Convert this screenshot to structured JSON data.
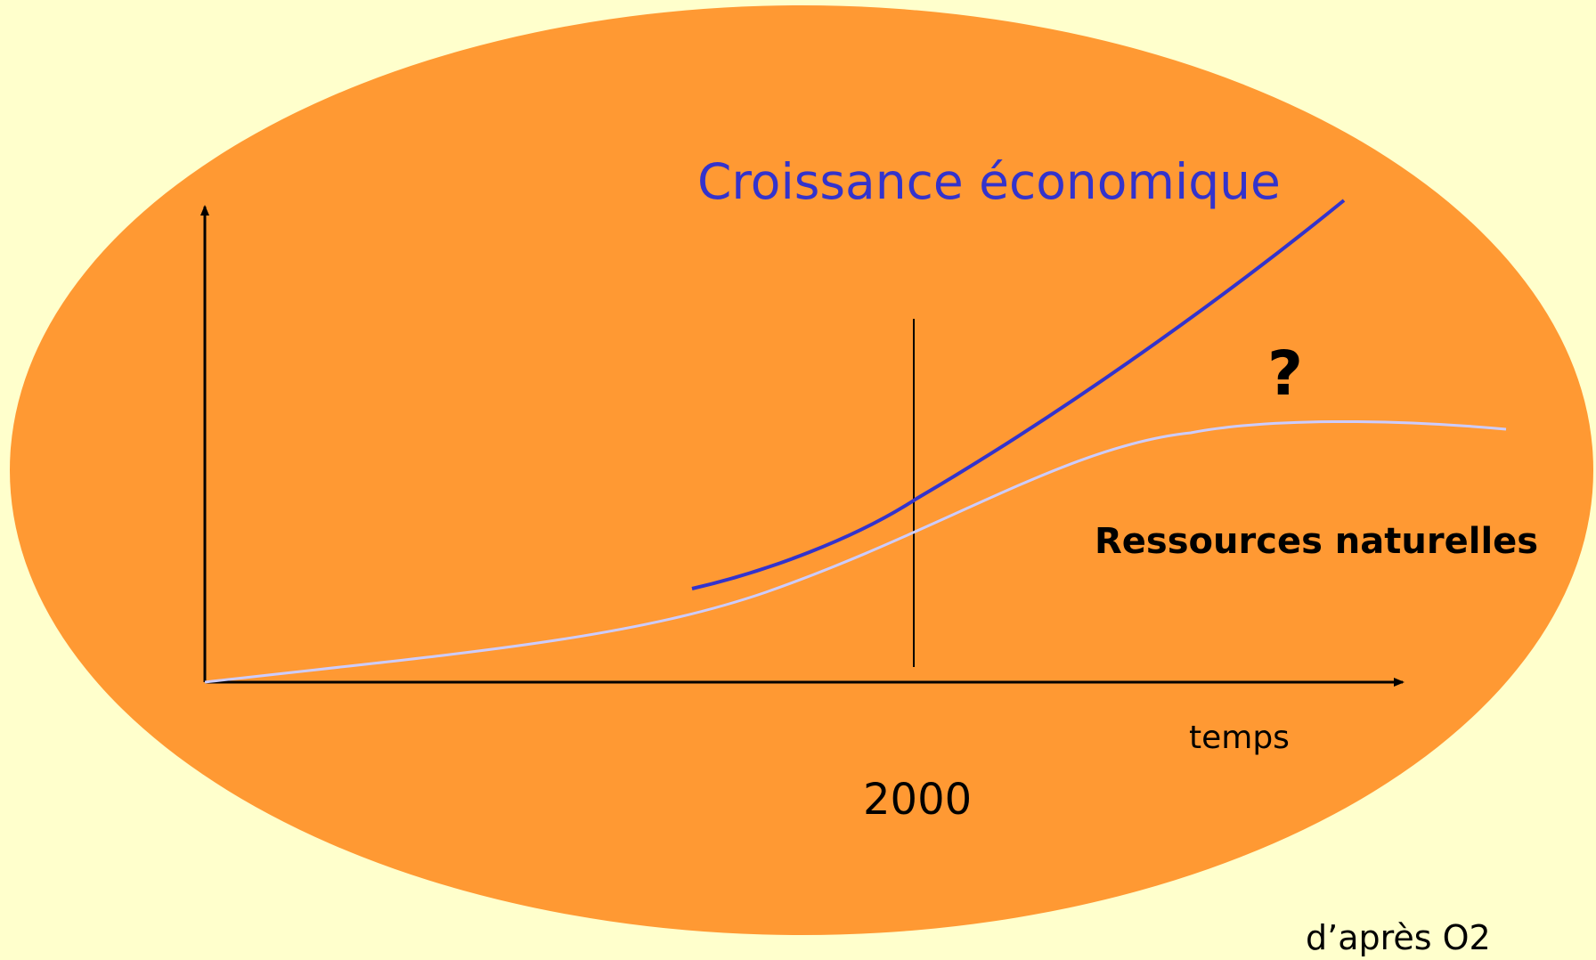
{
  "title": "Croissance économique",
  "curve_label": "Ressources naturelles",
  "question": "?",
  "x_axis_label": "temps",
  "marker_label": "2000",
  "source": "d’après O2"
}
